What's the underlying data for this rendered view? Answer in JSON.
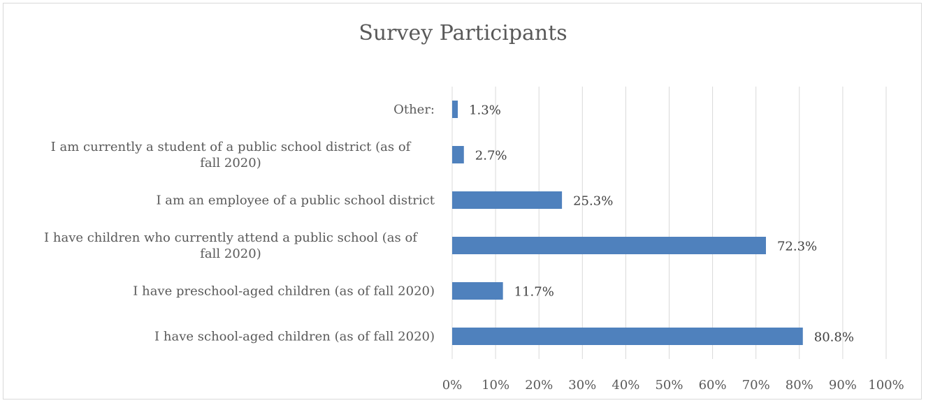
{
  "chart_data": {
    "type": "bar",
    "orientation": "horizontal",
    "title": "Survey Participants",
    "xlabel": "",
    "ylabel": "",
    "xlim": [
      0,
      100
    ],
    "grid": true,
    "bar_color": "#4f81bd",
    "x_ticks": [
      "0%",
      "10%",
      "20%",
      "30%",
      "40%",
      "50%",
      "60%",
      "70%",
      "80%",
      "90%",
      "100%"
    ],
    "categories": [
      [
        "Other:"
      ],
      [
        "I am currently a student of a public school district (as of",
        "fall 2020)"
      ],
      [
        "I am an employee of a public school district"
      ],
      [
        "I have children who currently attend a public school (as of",
        "fall 2020)"
      ],
      [
        "I have preschool-aged children (as of fall 2020)"
      ],
      [
        "I have school-aged children (as of fall 2020)"
      ]
    ],
    "values": [
      1.3,
      2.7,
      25.3,
      72.3,
      11.7,
      80.8
    ],
    "value_labels": [
      "1.3%",
      "2.7%",
      "25.3%",
      "72.3%",
      "11.7%",
      "80.8%"
    ]
  }
}
